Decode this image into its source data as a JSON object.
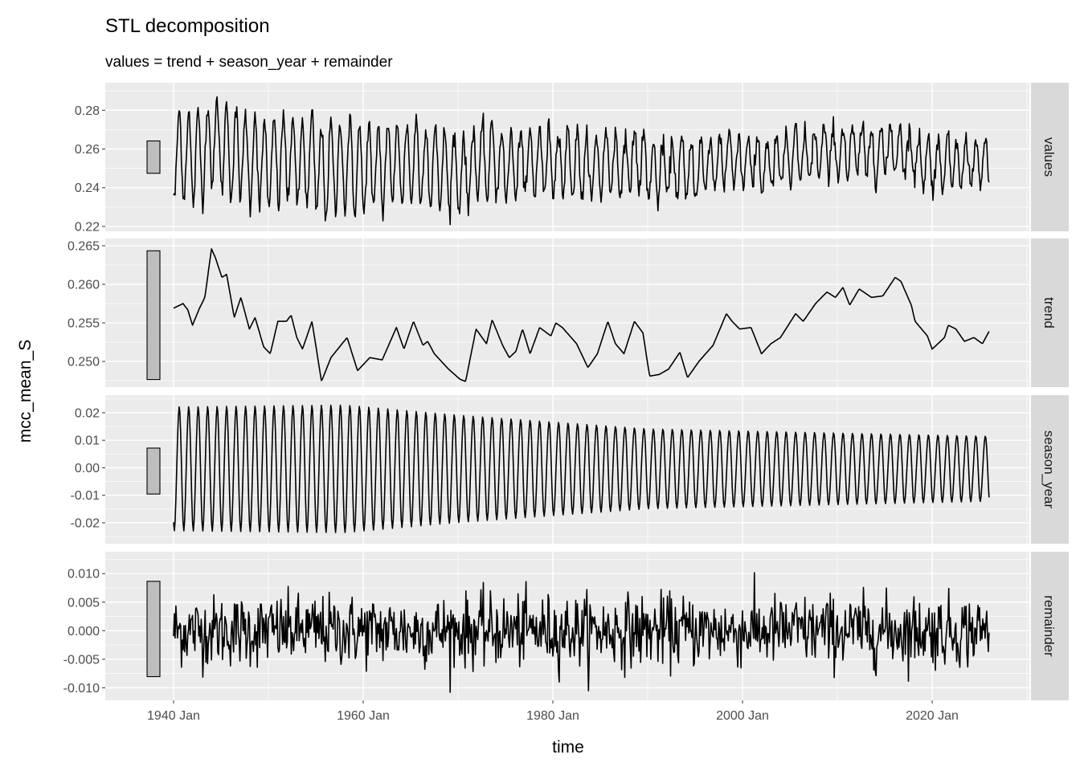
{
  "chart_data": {
    "type": "line",
    "title": "STL decomposition",
    "subtitle": "values = trend + season_year + remainder",
    "xlabel": "time",
    "ylabel": "mcc_mean_S",
    "x_ticks": [
      {
        "year": 1940,
        "label": "1940 Jan"
      },
      {
        "year": 1960,
        "label": "1960 Jan"
      },
      {
        "year": 1980,
        "label": "1980 Jan"
      },
      {
        "year": 2000,
        "label": "2000 Jan"
      },
      {
        "year": 2020,
        "label": "2020 Jan"
      }
    ],
    "xlim": [
      1932.8,
      2030.25
    ],
    "x_start": 1940,
    "x_end": 2026,
    "frequency": "monthly",
    "grid": true,
    "colors": {
      "panel_bg": "#ebebeb",
      "grid": "#ffffff",
      "line": "#000000",
      "strip_bg": "#d9d9d9",
      "scale_bar": "#bebebe"
    },
    "scale_bar_range": 0.0167,
    "panels": [
      {
        "name": "values",
        "ylim": [
          0.2175,
          0.2942
        ],
        "ticks": [
          0.22,
          0.24,
          0.26,
          0.28
        ],
        "tick_labels": [
          "0.22",
          "0.24",
          "0.26",
          "0.28"
        ],
        "scale_bar_center": 0.2558
      },
      {
        "name": "trend",
        "ylim": [
          0.24667,
          0.26594
        ],
        "ticks": [
          0.25,
          0.255,
          0.26,
          0.265
        ],
        "tick_labels": [
          "0.250",
          "0.255",
          "0.260",
          "0.265"
        ],
        "scale_bar_center": 0.256
      },
      {
        "name": "season_year",
        "ylim": [
          -0.0276,
          0.0264
        ],
        "ticks": [
          -0.02,
          -0.01,
          0,
          0.01,
          0.02
        ],
        "tick_labels": [
          "-0.02",
          "-0.01",
          "0.00",
          "0.01",
          "0.02"
        ],
        "scale_bar_center": -0.0012
      },
      {
        "name": "remainder",
        "ylim": [
          -0.0122,
          0.01383
        ],
        "ticks": [
          -0.01,
          -0.005,
          0,
          0.005,
          0.01
        ],
        "tick_labels": [
          "-0.010",
          "-0.005",
          "0.000",
          "0.005",
          "0.010"
        ],
        "scale_bar_center": 0.0003
      }
    ],
    "trend_points": [
      [
        1940,
        0.2569
      ],
      [
        1941,
        0.2575
      ],
      [
        1941.5,
        0.2567
      ],
      [
        1942,
        0.2547
      ],
      [
        1942.7,
        0.2568
      ],
      [
        1943.3,
        0.2583
      ],
      [
        1944,
        0.2646
      ],
      [
        1944.4,
        0.2635
      ],
      [
        1945.1,
        0.2609
      ],
      [
        1945.6,
        0.2613
      ],
      [
        1946.4,
        0.2557
      ],
      [
        1947.1,
        0.2583
      ],
      [
        1948,
        0.2542
      ],
      [
        1948.6,
        0.2557
      ],
      [
        1949.5,
        0.2519
      ],
      [
        1950.2,
        0.251
      ],
      [
        1951,
        0.2552
      ],
      [
        1951.9,
        0.2552
      ],
      [
        1952.4,
        0.256
      ],
      [
        1953,
        0.2531
      ],
      [
        1953.6,
        0.2516
      ],
      [
        1954.6,
        0.2552
      ],
      [
        1955.6,
        0.2474
      ],
      [
        1956.6,
        0.2505
      ],
      [
        1958.3,
        0.2531
      ],
      [
        1959.4,
        0.2488
      ],
      [
        1960.7,
        0.2505
      ],
      [
        1962,
        0.2502
      ],
      [
        1963.5,
        0.2544
      ],
      [
        1964.3,
        0.2516
      ],
      [
        1965.3,
        0.2552
      ],
      [
        1966.3,
        0.2521
      ],
      [
        1966.8,
        0.2526
      ],
      [
        1967.5,
        0.251
      ],
      [
        1969,
        0.249
      ],
      [
        1970.2,
        0.2477
      ],
      [
        1970.8,
        0.2474
      ],
      [
        1971.9,
        0.2542
      ],
      [
        1973,
        0.2523
      ],
      [
        1973.6,
        0.2554
      ],
      [
        1974.7,
        0.2521
      ],
      [
        1975.4,
        0.2505
      ],
      [
        1976.1,
        0.2513
      ],
      [
        1976.8,
        0.2542
      ],
      [
        1977.6,
        0.251
      ],
      [
        1978.6,
        0.2544
      ],
      [
        1979.8,
        0.2533
      ],
      [
        1980.3,
        0.255
      ],
      [
        1981,
        0.2544
      ],
      [
        1982.5,
        0.2523
      ],
      [
        1983.7,
        0.2492
      ],
      [
        1984.7,
        0.251
      ],
      [
        1985.8,
        0.2552
      ],
      [
        1986.6,
        0.2523
      ],
      [
        1987.5,
        0.251
      ],
      [
        1988.6,
        0.2552
      ],
      [
        1989.5,
        0.2537
      ],
      [
        1990.2,
        0.2481
      ],
      [
        1991.2,
        0.2483
      ],
      [
        1992.2,
        0.249
      ],
      [
        1993.4,
        0.2512
      ],
      [
        1994.2,
        0.2479
      ],
      [
        1995.4,
        0.25
      ],
      [
        1996.9,
        0.2521
      ],
      [
        1998.3,
        0.2562
      ],
      [
        1998.9,
        0.2552
      ],
      [
        1999.7,
        0.2542
      ],
      [
        2000.9,
        0.2544
      ],
      [
        2002,
        0.251
      ],
      [
        2003,
        0.2523
      ],
      [
        2004,
        0.2531
      ],
      [
        2005.6,
        0.2562
      ],
      [
        2006.4,
        0.2552
      ],
      [
        2007.7,
        0.2575
      ],
      [
        2008.9,
        0.259
      ],
      [
        2009.8,
        0.2583
      ],
      [
        2010.6,
        0.2596
      ],
      [
        2011.3,
        0.2573
      ],
      [
        2012.3,
        0.2594
      ],
      [
        2013.6,
        0.2583
      ],
      [
        2014.8,
        0.2585
      ],
      [
        2016.1,
        0.2609
      ],
      [
        2016.7,
        0.2604
      ],
      [
        2017.8,
        0.2573
      ],
      [
        2018.2,
        0.2552
      ],
      [
        2019.5,
        0.2533
      ],
      [
        2020,
        0.2516
      ],
      [
        2021.3,
        0.2531
      ],
      [
        2021.7,
        0.2547
      ],
      [
        2022.5,
        0.2542
      ],
      [
        2023.4,
        0.2526
      ],
      [
        2024.4,
        0.2531
      ],
      [
        2025.3,
        0.2523
      ],
      [
        2026,
        0.2539
      ]
    ],
    "season_amplitude_points": [
      [
        1940,
        0.0225
      ],
      [
        1958,
        0.0232
      ],
      [
        1970,
        0.0195
      ],
      [
        1990,
        0.0145
      ],
      [
        2026,
        0.0118
      ]
    ],
    "season_phase_start": -0.019,
    "remainder_sd": 0.0031
  }
}
